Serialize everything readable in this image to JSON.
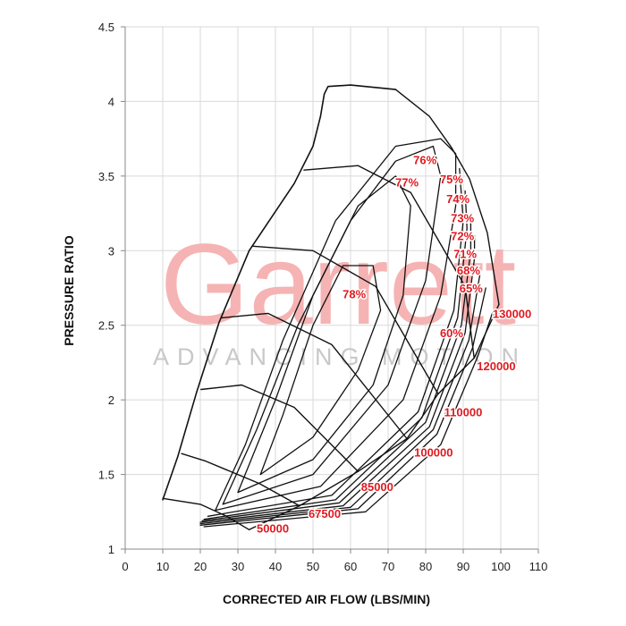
{
  "chart_data": {
    "type": "contour",
    "x_label": "CORRECTED AIR FLOW (LBS/MIN)",
    "y_label": "PRESSURE RATIO",
    "watermark": {
      "title": "Garrett",
      "subtitle": "ADVANCING MOTION"
    },
    "xlim": [
      0,
      110
    ],
    "xticks": [
      0,
      10,
      20,
      30,
      40,
      50,
      60,
      70,
      80,
      90,
      100,
      110
    ],
    "ylim": [
      1,
      4.5
    ],
    "yticks": [
      1,
      1.5,
      2,
      2.5,
      3,
      3.5,
      4,
      4.5
    ],
    "grid": true,
    "line_color": "#111111",
    "label_color": "#e0191f",
    "surge_line": {
      "x": [
        10,
        14,
        19,
        25,
        33,
        45,
        50,
        52,
        53,
        54,
        60,
        72
      ],
      "y": [
        1.33,
        1.62,
        2.05,
        2.52,
        3.0,
        3.45,
        3.7,
        3.9,
        4.05,
        4.1,
        4.11,
        4.08
      ]
    },
    "choke_line": {
      "x": [
        33,
        46.4,
        62,
        75,
        83.3,
        92.9,
        99.5
      ],
      "y": [
        1.13,
        1.29,
        1.52,
        1.74,
        2.04,
        2.28,
        2.64
      ]
    },
    "speed_lines": [
      {
        "name": "50000",
        "x": [
          10,
          20,
          27,
          33
        ],
        "y": [
          1.34,
          1.3,
          1.22,
          1.13
        ],
        "label_x": 39.3,
        "label_y": 1.14
      },
      {
        "name": "67500",
        "x": [
          15,
          21.4,
          35.7,
          46.4
        ],
        "y": [
          1.64,
          1.59,
          1.44,
          1.29
        ],
        "label_x": 53.1,
        "label_y": 1.24
      },
      {
        "name": "85000",
        "x": [
          20.2,
          31,
          45,
          62
        ],
        "y": [
          2.07,
          2.1,
          1.95,
          1.52
        ],
        "label_x": 67.1,
        "label_y": 1.42
      },
      {
        "name": "100000",
        "x": [
          25.7,
          38,
          55,
          75
        ],
        "y": [
          2.55,
          2.58,
          2.37,
          1.74
        ],
        "label_x": 82.1,
        "label_y": 1.65
      },
      {
        "name": "110000",
        "x": [
          34,
          50,
          66.7,
          83.3
        ],
        "y": [
          3.03,
          3.0,
          2.76,
          2.04
        ],
        "label_x": 90,
        "label_y": 1.92
      },
      {
        "name": "120000",
        "x": [
          47.6,
          62,
          76,
          90.5,
          92.9
        ],
        "y": [
          3.54,
          3.57,
          3.39,
          2.76,
          2.28
        ],
        "label_x": 98.8,
        "label_y": 2.23
      },
      {
        "name": "130000",
        "x": [
          72,
          81,
          86.9,
          91.7,
          96.4,
          99.5
        ],
        "y": [
          4.08,
          3.9,
          3.69,
          3.48,
          3.12,
          2.64
        ],
        "label_x": 103,
        "label_y": 2.58
      }
    ],
    "islands": [
      {
        "name": "78%",
        "x": [
          36,
          50,
          62,
          68,
          66,
          58,
          50,
          42,
          36
        ],
        "y": [
          1.5,
          1.75,
          2.2,
          2.6,
          2.9,
          2.9,
          2.5,
          1.9,
          1.5
        ],
        "label_x": 61,
        "label_y": 2.71
      },
      {
        "name": "77%",
        "x": [
          30,
          50,
          66,
          74,
          76,
          72,
          62,
          50,
          40,
          30
        ],
        "y": [
          1.38,
          1.6,
          2.1,
          2.7,
          3.3,
          3.5,
          3.3,
          2.7,
          2.0,
          1.38
        ],
        "label_x": 75,
        "label_y": 3.46
      },
      {
        "name": "76%",
        "x": [
          26,
          50,
          70,
          80,
          84,
          82,
          72,
          60,
          46,
          35,
          26
        ],
        "y": [
          1.3,
          1.5,
          2.1,
          2.8,
          3.5,
          3.7,
          3.6,
          3.2,
          2.5,
          1.8,
          1.3
        ],
        "label_x": 79.8,
        "label_y": 3.61
      },
      {
        "name": "75%",
        "x": [
          24,
          52,
          74,
          84,
          88,
          88,
          84,
          72,
          56,
          42,
          32,
          24
        ],
        "y": [
          1.26,
          1.42,
          2.0,
          2.7,
          3.3,
          3.65,
          3.75,
          3.7,
          3.2,
          2.4,
          1.7,
          1.26
        ],
        "label_x": 86.9,
        "label_y": 3.48
      },
      {
        "name": "74%",
        "x": [
          22,
          55,
          78,
          87.5,
          90,
          89
        ],
        "y": [
          1.22,
          1.36,
          1.92,
          2.6,
          3.2,
          3.55
        ],
        "label_x": 88.6,
        "label_y": 3.35
      },
      {
        "name": "73%",
        "x": [
          21,
          56,
          79,
          88.5,
          91,
          90.5
        ],
        "y": [
          1.2,
          1.33,
          1.88,
          2.55,
          3.15,
          3.4
        ],
        "label_x": 89.8,
        "label_y": 3.22
      },
      {
        "name": "72%",
        "x": [
          20.5,
          57,
          80,
          89.5,
          92,
          92
        ],
        "y": [
          1.19,
          1.31,
          1.85,
          2.5,
          3.0,
          3.25
        ],
        "label_x": 89.8,
        "label_y": 3.1
      },
      {
        "name": "71%",
        "x": [
          20,
          58,
          81,
          90.5,
          93,
          93
        ],
        "y": [
          1.18,
          1.29,
          1.82,
          2.45,
          2.95,
          3.1
        ],
        "label_x": 90.5,
        "label_y": 2.98
      },
      {
        "name": "68%",
        "x": [
          20,
          60,
          82,
          91.5,
          94.5
        ],
        "y": [
          1.17,
          1.28,
          1.8,
          2.4,
          2.85
        ],
        "label_x": 91.4,
        "label_y": 2.87
      },
      {
        "name": "65%",
        "x": [
          20,
          62,
          83,
          92.5,
          96
        ],
        "y": [
          1.16,
          1.27,
          1.77,
          2.35,
          2.75
        ],
        "label_x": 92.1,
        "label_y": 2.75
      },
      {
        "name": "60%",
        "x": [
          21,
          64,
          84,
          94,
          98
        ],
        "y": [
          1.15,
          1.25,
          1.7,
          2.3,
          2.6
        ],
        "label_x": 86.9,
        "label_y": 2.45
      }
    ]
  }
}
